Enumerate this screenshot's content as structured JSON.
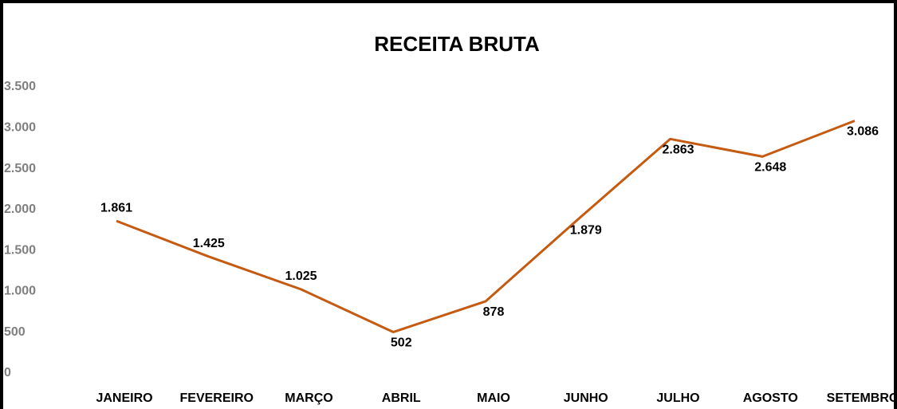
{
  "chart_data": {
    "type": "line",
    "title": "RECEITA BRUTA",
    "categories": [
      "JANEIRO",
      "FEVEREIRO",
      "MARÇO",
      "ABRIL",
      "MAIO",
      "JUNHO",
      "JULHO",
      "AGOSTO",
      "SETEMBRO"
    ],
    "values": [
      1861,
      1425,
      1025,
      502,
      878,
      1879,
      2863,
      2648,
      3086
    ],
    "value_labels": [
      "1.861",
      "1.425",
      "1.025",
      "502",
      "878",
      "1.879",
      "2.863",
      "2.648",
      "3.086"
    ],
    "color": "#c55a11",
    "ylim": [
      0,
      3500
    ],
    "yticks": [
      0,
      500,
      {
        "value": 1000,
        "label": "1.000"
      },
      {
        "value": 1500,
        "label": "1.500"
      },
      {
        "value": 2000,
        "label": "2.000"
      },
      {
        "value": 2500,
        "label": "2.500"
      },
      {
        "value": 3000,
        "label": "3.000"
      },
      {
        "value": 3500,
        "label": "3.500"
      }
    ],
    "grid": false
  }
}
